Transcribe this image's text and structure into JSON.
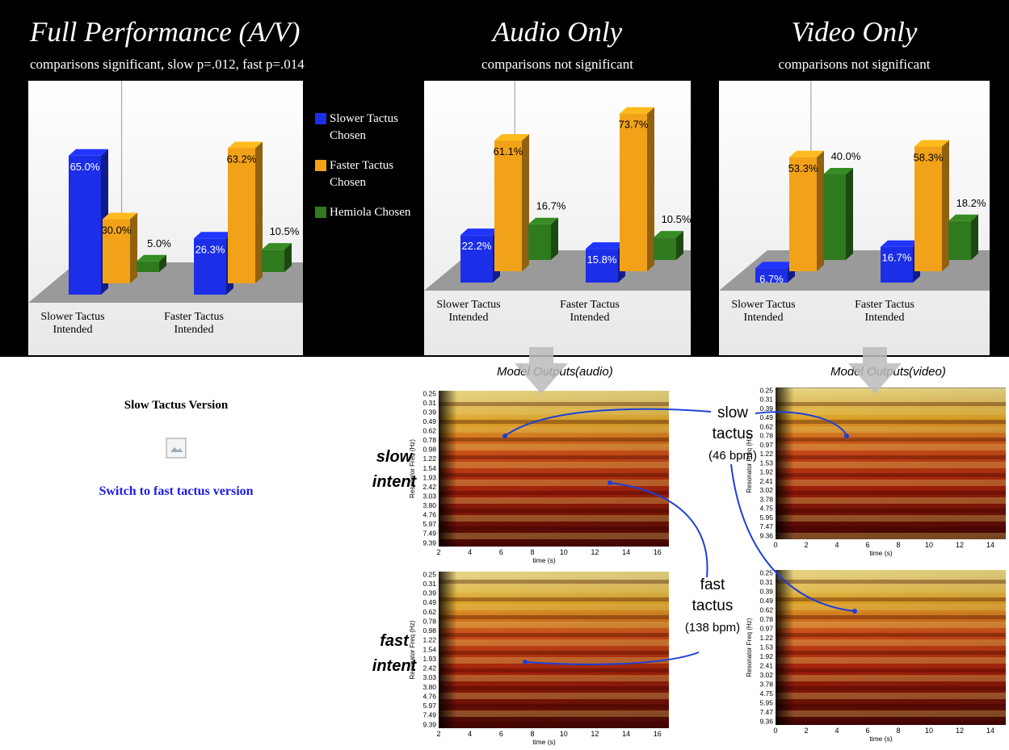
{
  "sidebar": {
    "title": "Slow Tactus Version",
    "link": "Switch to fast tactus version"
  },
  "figure": {
    "series": [
      {
        "name": "Slower Tactus Chosen",
        "color": "#1c2ee8"
      },
      {
        "name": "Faster Tactus Chosen",
        "color": "#f2a219"
      },
      {
        "name": "Hemiola Chosen",
        "color": "#2f7a1e"
      }
    ],
    "panels": [
      {
        "title": "Full Performance (A/V)",
        "subtitle": "comparisons significant, slow p=.012, fast p=.014",
        "categories": [
          "Slower Tactus Intended",
          "Faster Tactus Intended"
        ],
        "values": [
          [
            65.0,
            26.3
          ],
          [
            30.0,
            63.2
          ],
          [
            5.0,
            10.5
          ]
        ],
        "value_labels": [
          [
            "65.0%",
            "26.3%"
          ],
          [
            "30.0%",
            "63.2%"
          ],
          [
            "5.0%",
            "10.5%"
          ]
        ]
      },
      {
        "title": "Audio Only",
        "subtitle": "comparisons not significant",
        "categories": [
          "Slower Tactus Intended",
          "Faster Tactus Intended"
        ],
        "values": [
          [
            22.2,
            15.8
          ],
          [
            61.1,
            73.7
          ],
          [
            16.7,
            10.5
          ]
        ],
        "value_labels": [
          [
            "22.2%",
            "15.8%"
          ],
          [
            "61.1%",
            "73.7%"
          ],
          [
            "16.7%",
            "10.5%"
          ]
        ]
      },
      {
        "title": "Video Only",
        "subtitle": "comparisons not significant",
        "categories": [
          "Slower Tactus Intended",
          "Faster Tactus Intended"
        ],
        "values": [
          [
            6.7,
            16.7
          ],
          [
            53.3,
            58.3
          ],
          [
            40.0,
            18.2
          ]
        ],
        "value_labels": [
          [
            "6.7%",
            "16.7%"
          ],
          [
            "53.3%",
            "58.3%"
          ],
          [
            "40.0%",
            "18.2%"
          ]
        ]
      }
    ],
    "model_outputs": [
      {
        "title": "Model Outputs",
        "source": "(audio)",
        "y_label": "Resonator Freq (Hz)",
        "x_label": "time (s)",
        "yticks": [
          "0.25",
          "0.31",
          "0.39",
          "0.49",
          "0.62",
          "0.78",
          "0.98",
          "1.22",
          "1.54",
          "1.93",
          "2.42",
          "3.03",
          "3.80",
          "4.76",
          "5.97",
          "7.49",
          "9.39"
        ],
        "xticks": [
          "2",
          "4",
          "6",
          "8",
          "10",
          "12",
          "14",
          "16"
        ]
      },
      {
        "title": "Model Outputs",
        "source": "(video)",
        "y_label": "Resonator Freq (Hz)",
        "x_label": "time (s)",
        "yticks": [
          "0.25",
          "0.31",
          "0.39",
          "0.49",
          "0.62",
          "0.78",
          "0.97",
          "1.22",
          "1.53",
          "1.92",
          "2.41",
          "3.02",
          "3.78",
          "4.75",
          "5.95",
          "7.47",
          "9.36"
        ],
        "xticks": [
          "0",
          "2",
          "4",
          "6",
          "8",
          "10",
          "12",
          "14"
        ]
      }
    ],
    "annotations": {
      "slow_intent": [
        "slow",
        "intent"
      ],
      "fast_intent": [
        "fast",
        "intent"
      ],
      "slow_tactus": [
        "slow",
        "tactus",
        "(46 bpm)"
      ],
      "fast_tactus": [
        "fast",
        "tactus",
        "(138 bpm)"
      ]
    }
  }
}
